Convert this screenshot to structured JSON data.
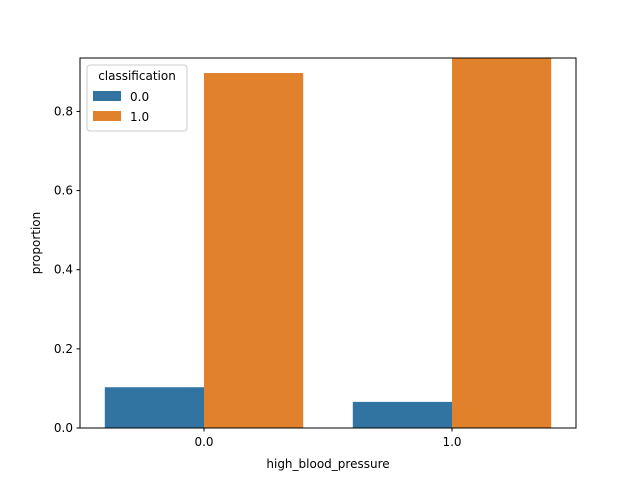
{
  "chart_data": {
    "type": "bar",
    "title": "",
    "xlabel": "high_blood_pressure",
    "ylabel": "proportion",
    "categories": [
      "0.0",
      "1.0"
    ],
    "ylim": [
      0,
      0.935
    ],
    "yticks": [
      0.0,
      0.2,
      0.4,
      0.6,
      0.8
    ],
    "ytick_labels": [
      "0.0",
      "0.2",
      "0.4",
      "0.6",
      "0.8"
    ],
    "grid": false,
    "legend": {
      "title": "classification",
      "placement": "upper-left"
    },
    "series": [
      {
        "name": "0.0",
        "color": "#3274a1",
        "values": [
          0.103,
          0.066
        ]
      },
      {
        "name": "1.0",
        "color": "#e1812c",
        "values": [
          0.897,
          0.934
        ]
      }
    ]
  }
}
